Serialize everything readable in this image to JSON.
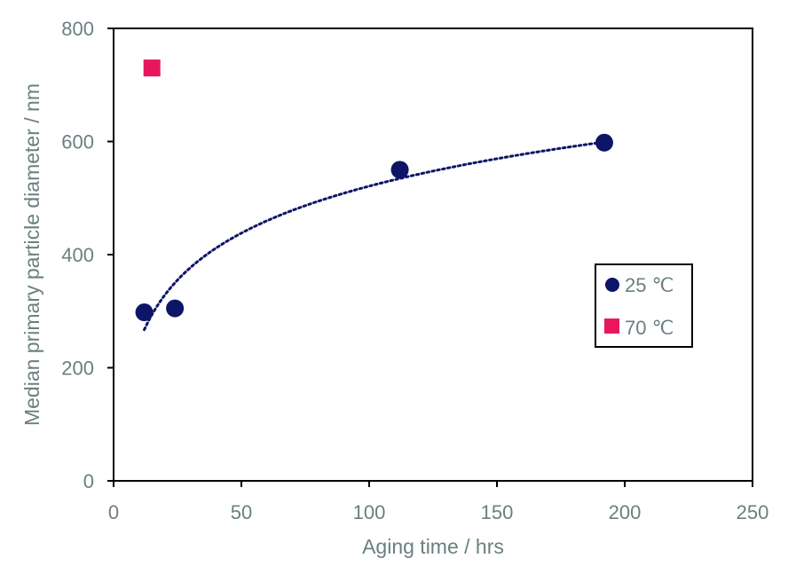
{
  "chart_data": {
    "type": "scatter",
    "xlabel": "Aging time / hrs",
    "ylabel": "Median primary particle diameter / nm",
    "xlim": [
      0,
      250
    ],
    "ylim": [
      0,
      800
    ],
    "xticks": [
      "0",
      "50",
      "100",
      "150",
      "200",
      "250"
    ],
    "yticks": [
      "0",
      "200",
      "400",
      "600",
      "800"
    ],
    "grid": false,
    "legend_position": "right",
    "series": [
      {
        "name": "25 ℃",
        "marker": "circle",
        "color": "#0d1566",
        "points": [
          {
            "x": 12,
            "y": 298
          },
          {
            "x": 24,
            "y": 305
          },
          {
            "x": 112,
            "y": 550
          },
          {
            "x": 192,
            "y": 598
          }
        ]
      },
      {
        "name": "70 ℃",
        "marker": "square",
        "color": "#e8175d",
        "points": [
          {
            "x": 15,
            "y": 730
          }
        ]
      }
    ],
    "trendline": {
      "type": "logarithmic",
      "series": "25 ℃",
      "style": "dotted",
      "color": "#0d1566",
      "x_range": [
        12,
        192
      ]
    }
  }
}
